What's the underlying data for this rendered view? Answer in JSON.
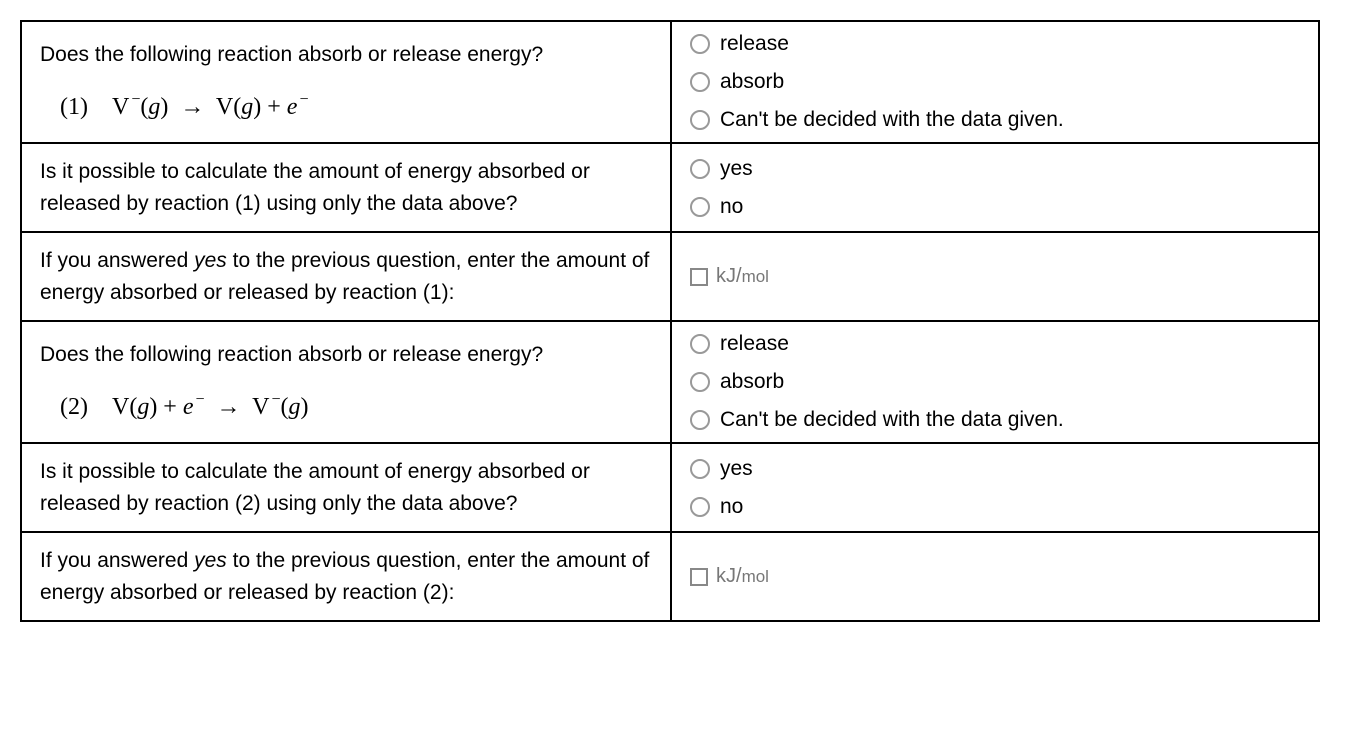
{
  "rows": [
    {
      "question": "Does the following reaction absorb or release energy?",
      "equation_num": "(1)",
      "equation_html": "V<span class='sup'>−</span>(<span class='ital'>g</span>) &nbsp;→&nbsp; V(<span class='ital'>g</span>) + <span class='ital'>e</span><span class='sup'>−</span>",
      "options": [
        "release",
        "absorb",
        "Can't be decided with the data given."
      ]
    },
    {
      "question": "Is it possible to calculate the amount of energy absorbed or released by reaction (1) using only the data above?",
      "options": [
        "yes",
        "no"
      ]
    },
    {
      "question_html": "If you answered <em>yes</em> to the previous question, enter the amount of energy absorbed or released by reaction (1):",
      "input_unit_kj": "kJ/",
      "input_unit_mol": "mol"
    },
    {
      "question": "Does the following reaction absorb or release energy?",
      "equation_num": "(2)",
      "equation_html": "V(<span class='ital'>g</span>) + <span class='ital'>e</span><span class='sup'>−</span> &nbsp;→&nbsp; V<span class='sup'>−</span>(<span class='ital'>g</span>)",
      "options": [
        "release",
        "absorb",
        "Can't be decided with the data given."
      ]
    },
    {
      "question": "Is it possible to calculate the amount of energy absorbed or released by reaction (2) using only the data above?",
      "options": [
        "yes",
        "no"
      ]
    },
    {
      "question_html": "If you answered <em>yes</em> to the previous question, enter the amount of energy absorbed or released by reaction (2):",
      "input_unit_kj": "kJ/",
      "input_unit_mol": "mol"
    }
  ]
}
